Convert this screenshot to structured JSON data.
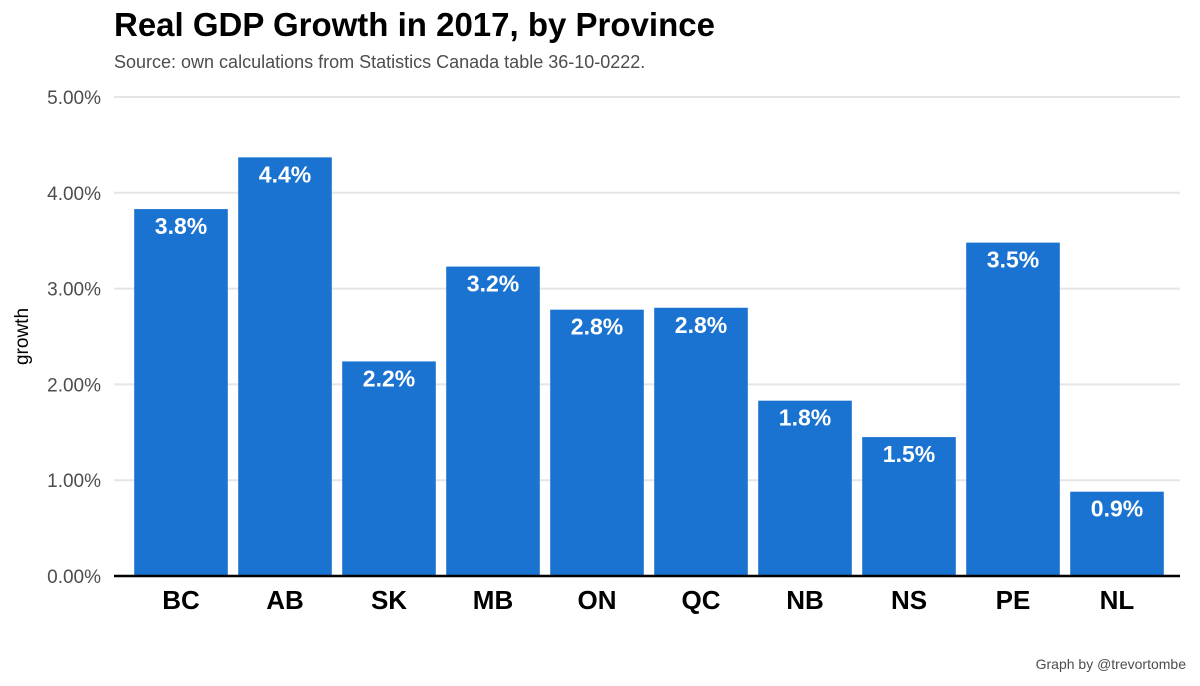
{
  "chart_data": {
    "type": "bar",
    "title": "Real GDP Growth in 2017, by Province",
    "subtitle": "Source: own calculations from Statistics Canada table 36-10-0222.",
    "caption": "Graph by @trevortombe",
    "xlabel": "",
    "ylabel": "growth",
    "categories": [
      "BC",
      "AB",
      "SK",
      "MB",
      "ON",
      "QC",
      "NB",
      "NS",
      "PE",
      "NL"
    ],
    "values": [
      3.83,
      4.37,
      2.24,
      3.23,
      2.78,
      2.8,
      1.83,
      1.45,
      3.48,
      0.88
    ],
    "data_labels": [
      "3.8%",
      "4.4%",
      "2.2%",
      "3.2%",
      "2.8%",
      "2.8%",
      "1.8%",
      "1.5%",
      "3.5%",
      "0.9%"
    ],
    "yticks": [
      0,
      1,
      2,
      3,
      4,
      5
    ],
    "ytick_labels": [
      "0.00%",
      "1.00%",
      "2.00%",
      "3.00%",
      "4.00%",
      "5.00%"
    ],
    "ylim": [
      0,
      5
    ],
    "grid": true,
    "bar_color": "#1a73d0"
  }
}
